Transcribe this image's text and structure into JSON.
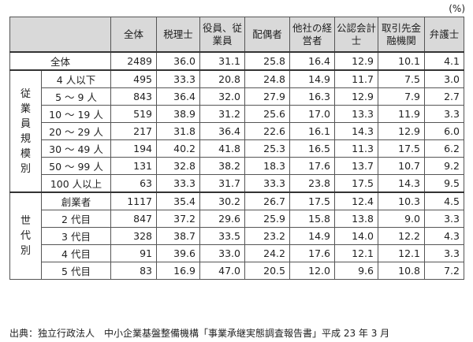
{
  "unit": "(%)",
  "columns": [
    "全体",
    "税理士",
    "役員、従業員",
    "配偶者",
    "他社の経営者",
    "公認会計士",
    "取引先金融機関",
    "弁護士"
  ],
  "total_row": {
    "label": "全体",
    "values": [
      "2489",
      "36.0",
      "31.1",
      "25.8",
      "16.4",
      "12.9",
      "10.1",
      "4.1"
    ]
  },
  "groups": [
    {
      "label": "従業員規模別",
      "rows": [
        {
          "label": "4 人以下",
          "values": [
            "495",
            "33.3",
            "20.8",
            "24.8",
            "14.9",
            "11.7",
            "7.5",
            "3.0"
          ]
        },
        {
          "label": "5 ～ 9 人",
          "values": [
            "843",
            "36.4",
            "32.0",
            "27.9",
            "16.3",
            "12.9",
            "7.9",
            "2.7"
          ]
        },
        {
          "label": "10 ～ 19 人",
          "values": [
            "519",
            "38.9",
            "31.2",
            "25.6",
            "17.0",
            "13.3",
            "11.9",
            "3.3"
          ]
        },
        {
          "label": "20 ～ 29 人",
          "values": [
            "217",
            "31.8",
            "36.4",
            "22.6",
            "16.1",
            "14.3",
            "12.9",
            "6.0"
          ]
        },
        {
          "label": "30 ～ 49 人",
          "values": [
            "194",
            "40.2",
            "41.8",
            "25.3",
            "16.5",
            "11.3",
            "17.5",
            "6.2"
          ]
        },
        {
          "label": "50 ～ 99 人",
          "values": [
            "131",
            "32.8",
            "38.2",
            "18.3",
            "17.6",
            "13.7",
            "10.7",
            "9.2"
          ]
        },
        {
          "label": "100 人以上",
          "values": [
            "63",
            "33.3",
            "31.7",
            "33.3",
            "23.8",
            "17.5",
            "14.3",
            "9.5"
          ]
        }
      ]
    },
    {
      "label": "世代別",
      "rows": [
        {
          "label": "創業者",
          "values": [
            "1117",
            "35.4",
            "30.2",
            "26.7",
            "17.5",
            "12.4",
            "10.3",
            "4.5"
          ]
        },
        {
          "label": "2 代目",
          "values": [
            "847",
            "37.2",
            "29.6",
            "25.9",
            "15.8",
            "13.8",
            "9.0",
            "3.3"
          ]
        },
        {
          "label": "3 代目",
          "values": [
            "328",
            "38.7",
            "33.5",
            "23.2",
            "14.9",
            "14.0",
            "12.2",
            "4.3"
          ]
        },
        {
          "label": "4 代目",
          "values": [
            "91",
            "39.6",
            "33.0",
            "24.2",
            "17.6",
            "12.1",
            "12.1",
            "3.3"
          ]
        },
        {
          "label": "5 代目",
          "values": [
            "83",
            "16.9",
            "47.0",
            "20.5",
            "12.0",
            "9.6",
            "10.8",
            "7.2"
          ]
        }
      ]
    }
  ],
  "source": "出典：独立行政法人　中小企業基盤整備機構「事業承継実態調査報告書」平成 23 年 3 月"
}
